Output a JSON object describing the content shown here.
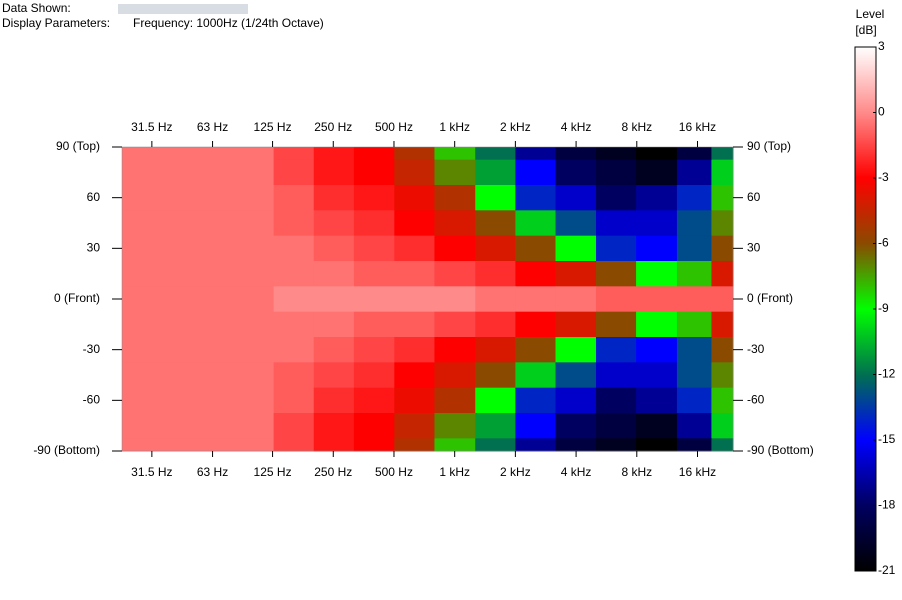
{
  "header": {
    "data_shown_label": "Data Shown:",
    "display_parameters_label": "Display Parameters:",
    "display_parameters": "Frequency: 1000Hz (1/24th Octave)"
  },
  "chart_data": {
    "type": "heatmap",
    "x": [
      25,
      40,
      63,
      100,
      160,
      250,
      400,
      630,
      1000,
      1600,
      2500,
      4000,
      6300,
      10000,
      16000,
      22000
    ],
    "y": [
      90,
      75,
      60,
      45,
      30,
      15,
      0,
      -15,
      -30,
      -45,
      -60,
      -75,
      -90
    ],
    "z": [
      [
        -0.5,
        -0.5,
        -0.5,
        -0.5,
        -1.5,
        -2.5,
        -3,
        -5,
        -8,
        -12,
        -17,
        -19,
        -20,
        -21,
        -19,
        -12
      ],
      [
        -0.5,
        -0.5,
        -0.5,
        -0.5,
        -1.5,
        -2.5,
        -3,
        -4.5,
        -7,
        -11,
        -15,
        -18,
        -19,
        -20,
        -17,
        -10
      ],
      [
        -0.5,
        -0.5,
        -0.5,
        -0.5,
        -1,
        -2,
        -2.5,
        -3.5,
        -5,
        -9,
        -14,
        -16,
        -18,
        -17,
        -14,
        -8
      ],
      [
        -0.5,
        -0.5,
        -0.5,
        -0.5,
        -1,
        -1.5,
        -2,
        -3,
        -4,
        -6,
        -10,
        -13,
        -16,
        -16,
        -13,
        -7
      ],
      [
        -0.5,
        -0.5,
        -0.5,
        -0.5,
        -0.5,
        -1,
        -1.5,
        -2,
        -3,
        -4,
        -6,
        -9,
        -14,
        -15,
        -13,
        -6
      ],
      [
        -0.5,
        -0.5,
        -0.5,
        -0.5,
        -0.5,
        -0.5,
        -1,
        -1,
        -1.5,
        -2,
        -3,
        -4,
        -6,
        -9,
        -8,
        -4
      ],
      [
        -0.5,
        -0.5,
        -0.5,
        -0.5,
        0,
        0,
        0,
        0,
        0,
        -0.5,
        -0.5,
        -0.5,
        -1,
        -1,
        -1,
        -1
      ],
      [
        -0.5,
        -0.5,
        -0.5,
        -0.5,
        -0.5,
        -0.5,
        -1,
        -1,
        -1.5,
        -2,
        -3,
        -4,
        -6,
        -9,
        -8,
        -4
      ],
      [
        -0.5,
        -0.5,
        -0.5,
        -0.5,
        -0.5,
        -1,
        -1.5,
        -2,
        -3,
        -4,
        -6,
        -9,
        -14,
        -15,
        -13,
        -6
      ],
      [
        -0.5,
        -0.5,
        -0.5,
        -0.5,
        -1,
        -1.5,
        -2,
        -3,
        -4,
        -6,
        -10,
        -13,
        -16,
        -16,
        -13,
        -7
      ],
      [
        -0.5,
        -0.5,
        -0.5,
        -0.5,
        -1,
        -2,
        -2.5,
        -3.5,
        -5,
        -9,
        -14,
        -16,
        -18,
        -17,
        -14,
        -8
      ],
      [
        -0.5,
        -0.5,
        -0.5,
        -0.5,
        -1.5,
        -2.5,
        -3,
        -4.5,
        -7,
        -11,
        -15,
        -18,
        -19,
        -20,
        -17,
        -10
      ],
      [
        -0.5,
        -0.5,
        -0.5,
        -0.5,
        -1.5,
        -2.5,
        -3,
        -5,
        -8,
        -12,
        -17,
        -19,
        -20,
        -21,
        -19,
        -12
      ]
    ],
    "xlog": true,
    "xlim": [
      22.4,
      24000
    ],
    "xticks": [
      {
        "value": 31.5,
        "label": "31.5 Hz"
      },
      {
        "value": 63,
        "label": "63 Hz"
      },
      {
        "value": 125,
        "label": "125 Hz"
      },
      {
        "value": 250,
        "label": "250 Hz"
      },
      {
        "value": 500,
        "label": "500 Hz"
      },
      {
        "value": 1000,
        "label": "1 kHz"
      },
      {
        "value": 2000,
        "label": "2 kHz"
      },
      {
        "value": 4000,
        "label": "4 kHz"
      },
      {
        "value": 8000,
        "label": "8 kHz"
      },
      {
        "value": 16000,
        "label": "16 kHz"
      }
    ],
    "ylim": [
      -90,
      90
    ],
    "yticks": [
      {
        "value": 90,
        "label": "90 (Top)"
      },
      60,
      30,
      {
        "value": 0,
        "label": "0 (Front)"
      },
      -30,
      -60,
      {
        "value": -90,
        "label": "-90 (Bottom)"
      }
    ],
    "colorbar_title": "Level",
    "colorbar_unit": "[dB]",
    "zlim": [
      -21,
      3
    ],
    "zticks": [
      3,
      0,
      -3,
      -6,
      -9,
      -12,
      -15,
      -18,
      -21
    ],
    "colorscale": [
      [
        3,
        "#ffffff"
      ],
      [
        0,
        "#ff8a8a"
      ],
      [
        -3,
        "#ff0000"
      ],
      [
        -6,
        "#8a4a00"
      ],
      [
        -9,
        "#00ff00"
      ],
      [
        -12,
        "#007050"
      ],
      [
        -15,
        "#0000ff"
      ],
      [
        -18,
        "#000060"
      ],
      [
        -21,
        "#000000"
      ]
    ]
  }
}
